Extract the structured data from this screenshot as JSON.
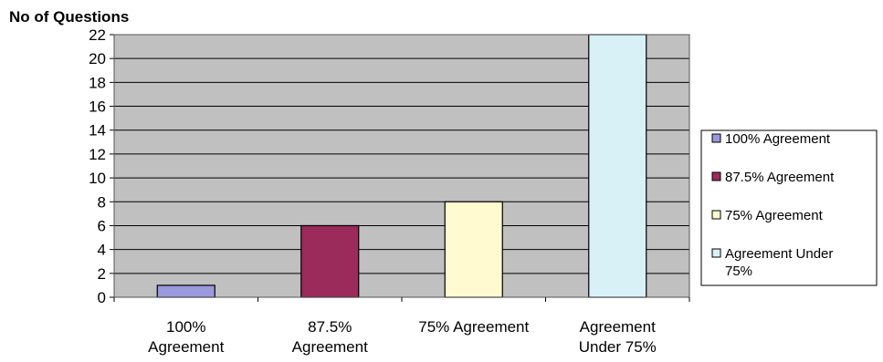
{
  "chart_data": {
    "type": "bar",
    "ylabel": "No of Questions",
    "xlabel": "",
    "categories": [
      [
        "100%",
        "Agreement"
      ],
      [
        "87.5%",
        "Agreement"
      ],
      [
        "75% Agreement"
      ],
      [
        "Agreement",
        "Under 75%"
      ]
    ],
    "values": [
      1,
      6,
      8,
      22
    ],
    "colors": [
      "#9a99dd",
      "#9a2b5a",
      "#fffad0",
      "#d8f1f7"
    ],
    "ylim": [
      0,
      22
    ],
    "yticks": [
      0,
      2,
      4,
      6,
      8,
      10,
      12,
      14,
      16,
      18,
      20,
      22
    ],
    "grid": true,
    "plot_background": "#c0c0c0",
    "legend_position": "right",
    "legend": [
      [
        "100% Agreement"
      ],
      [
        "87.5% Agreement"
      ],
      [
        "75% Agreement"
      ],
      [
        "Agreement Under",
        "75%"
      ]
    ]
  }
}
